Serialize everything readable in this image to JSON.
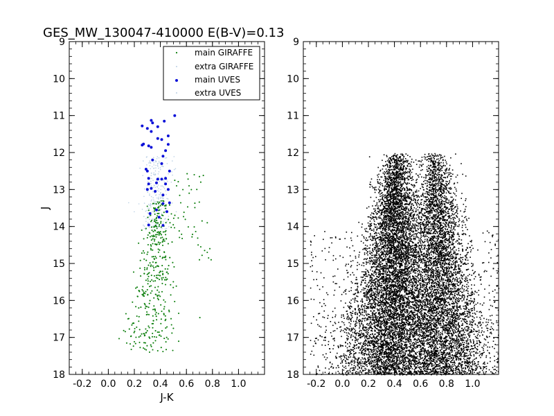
{
  "title": "GES_MW_130047-410000 E(B-V)=0.13",
  "colors": {
    "main_giraffe": "#0a7d0a",
    "extra_giraffe": "#b9cfe3",
    "main_uves": "#0a10d8",
    "extra_uves": "#b9cfe3",
    "field": "#000000"
  },
  "chart_data": [
    {
      "type": "scatter",
      "name": "left-panel",
      "xlabel": "J-K",
      "ylabel": "J",
      "xlim": [
        -0.3,
        1.2
      ],
      "ylim": [
        18,
        9
      ],
      "y_inverted": true,
      "xticks": [
        -0.2,
        0.0,
        0.2,
        0.4,
        0.6,
        0.8,
        1.0
      ],
      "xtick_labels": [
        "-0.2",
        "0.0",
        "0.2",
        "0.4",
        "0.6",
        "0.8",
        "1.0"
      ],
      "yticks": [
        9,
        10,
        11,
        12,
        13,
        14,
        15,
        16,
        17,
        18
      ],
      "ytick_labels": [
        "9",
        "10",
        "11",
        "12",
        "13",
        "14",
        "15",
        "16",
        "17",
        "18"
      ],
      "legend": {
        "location": "top-right",
        "entries": [
          "main GIRAFFE",
          "extra GIRAFFE",
          "main UVES",
          "extra UVES"
        ]
      },
      "series": [
        {
          "name": "main UVES",
          "points": [
            [
              0.51,
              11.0
            ],
            [
              0.26,
              11.28
            ],
            [
              0.33,
              11.13
            ],
            [
              0.34,
              11.2
            ],
            [
              0.43,
              11.15
            ],
            [
              0.3,
              11.35
            ],
            [
              0.33,
              11.43
            ],
            [
              0.38,
              11.3
            ],
            [
              0.46,
              11.55
            ],
            [
              0.27,
              11.77
            ],
            [
              0.26,
              11.8
            ],
            [
              0.31,
              11.82
            ],
            [
              0.33,
              11.86
            ],
            [
              0.38,
              11.62
            ],
            [
              0.41,
              11.65
            ],
            [
              0.46,
              11.78
            ],
            [
              0.44,
              11.95
            ],
            [
              0.42,
              12.1
            ],
            [
              0.34,
              12.2
            ],
            [
              0.41,
              12.3
            ],
            [
              0.29,
              12.45
            ],
            [
              0.3,
              12.5
            ],
            [
              0.47,
              12.5
            ],
            [
              0.38,
              12.72
            ],
            [
              0.31,
              12.7
            ],
            [
              0.41,
              12.72
            ],
            [
              0.44,
              12.7
            ],
            [
              0.37,
              12.82
            ],
            [
              0.31,
              12.85
            ],
            [
              0.33,
              12.97
            ],
            [
              0.3,
              13.0
            ],
            [
              0.36,
              13.05
            ],
            [
              0.44,
              12.85
            ],
            [
              0.46,
              13.0
            ],
            [
              0.42,
              13.15
            ],
            [
              0.42,
              13.38
            ],
            [
              0.47,
              13.36
            ],
            [
              0.37,
              13.55
            ],
            [
              0.39,
              13.75
            ],
            [
              0.45,
              13.6
            ],
            [
              0.32,
              13.65
            ],
            [
              0.42,
              13.97
            ],
            [
              0.31,
              13.96
            ]
          ]
        }
      ]
    },
    {
      "type": "scatter",
      "name": "right-panel",
      "xlim": [
        -0.3,
        1.2
      ],
      "ylim": [
        18,
        9
      ],
      "y_inverted": true,
      "xticks": [
        -0.2,
        0.0,
        0.2,
        0.4,
        0.6,
        0.8,
        1.0
      ],
      "xtick_labels": [
        "-0.2",
        "0.0",
        "0.2",
        "0.4",
        "0.6",
        "0.8",
        "1.0"
      ],
      "yticks": [
        9,
        10,
        11,
        12,
        13,
        14,
        15,
        16,
        17,
        18
      ],
      "ytick_labels": [
        "9",
        "10",
        "11",
        "12",
        "13",
        "14",
        "15",
        "16",
        "17",
        "18"
      ]
    }
  ]
}
